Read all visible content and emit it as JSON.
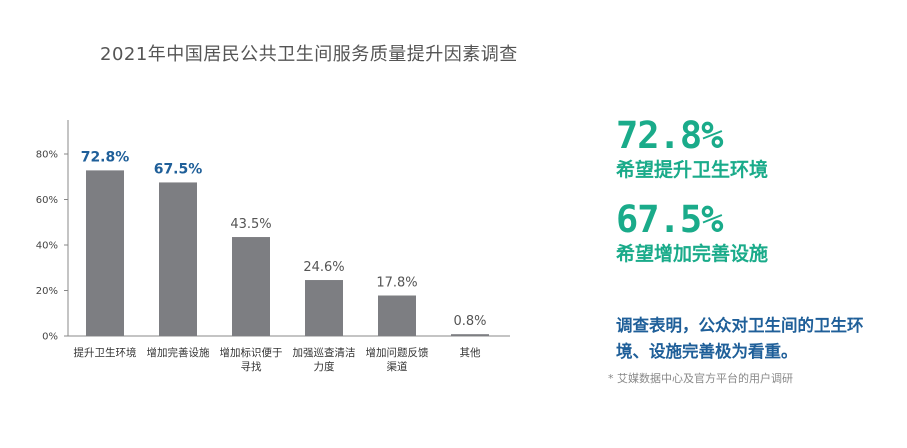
{
  "title": "2021年中国居民公共卫生间服务质量提升因素调查",
  "chart_data": {
    "type": "bar",
    "categories": [
      [
        "提升卫生环境"
      ],
      [
        "增加完善设施"
      ],
      [
        "增加标识便于",
        "寻找"
      ],
      [
        "加强巡查清洁",
        "力度"
      ],
      [
        "增加问题反馈",
        "渠道"
      ],
      [
        "其他"
      ]
    ],
    "values": [
      72.8,
      67.5,
      43.5,
      24.6,
      17.8,
      0.8
    ],
    "value_labels": [
      "72.8%",
      "67.5%",
      "43.5%",
      "24.6%",
      "17.8%",
      "0.8%"
    ],
    "highlighted": [
      true,
      true,
      false,
      false,
      false,
      false
    ],
    "yticks": [
      "0%",
      "20%",
      "40%",
      "60%",
      "80%"
    ],
    "ylim": [
      0,
      90
    ],
    "bar_color": "#7d7e82",
    "highlight_label_color": "#1f5f99"
  },
  "stats": [
    {
      "value": "72.8%",
      "label": "希望提升卫生环境"
    },
    {
      "value": "67.5%",
      "label": "希望增加完善设施"
    }
  ],
  "conclusion": "调查表明，公众对卫生间的卫生环境、设施完善极为看重。",
  "source": "* 艾媒数据中心及官方平台的用户调研",
  "colors": {
    "accent_green": "#1aab8a",
    "accent_blue": "#1f5f99"
  }
}
